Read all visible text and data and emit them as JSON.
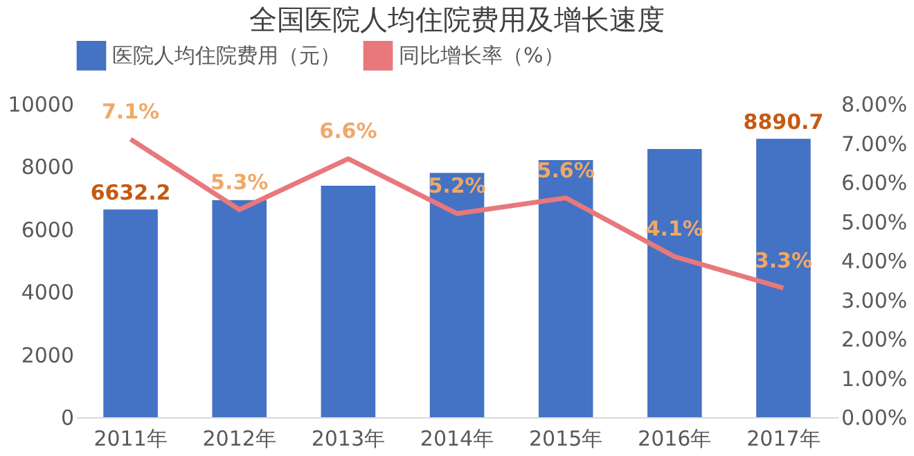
{
  "chart_data": {
    "type": "bar",
    "title": "全国医院人均住院费用及增长速度",
    "categories": [
      "2011年",
      "2012年",
      "2013年",
      "2014年",
      "2015年",
      "2016年",
      "2017年"
    ],
    "series": [
      {
        "name": "医院人均住院费用（元）",
        "color": "#4472c4",
        "values": [
          6632.2,
          6930,
          7390,
          7800,
          8210,
          8560,
          8890.7
        ],
        "value_labels": [
          "6632.2",
          null,
          null,
          null,
          null,
          null,
          "8890.7"
        ]
      },
      {
        "name": "同比增长率（%）",
        "type": "line",
        "axis": "y2",
        "color": "#e8787c",
        "values": [
          7.1,
          5.3,
          6.6,
          5.2,
          5.6,
          4.1,
          3.3
        ],
        "value_labels": [
          "7.1%",
          "5.3%",
          "6.6%",
          "5.2%",
          "5.6%",
          "4.1%",
          "3.3%"
        ]
      }
    ],
    "ylim": [
      0,
      10000
    ],
    "yticks": [
      0,
      2000,
      4000,
      6000,
      8000,
      10000
    ],
    "y2lim": [
      0,
      8
    ],
    "y2ticks": [
      {
        "value": 0,
        "label": "0.00%"
      },
      {
        "value": 1,
        "label": "1.00%"
      },
      {
        "value": 2,
        "label": "2.00%"
      },
      {
        "value": 3,
        "label": "3.00%"
      },
      {
        "value": 4,
        "label": "4.00%"
      },
      {
        "value": 5,
        "label": "5.00%"
      },
      {
        "value": 6,
        "label": "6.00%"
      },
      {
        "value": 7,
        "label": "7.00%"
      },
      {
        "value": 8,
        "label": "8.00%"
      }
    ],
    "legend": "top",
    "grid": false,
    "marker": "none"
  }
}
